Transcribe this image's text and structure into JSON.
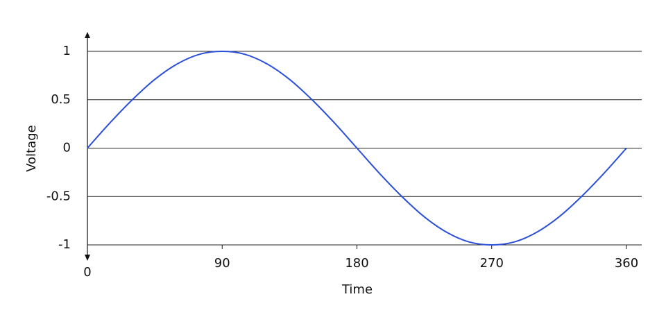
{
  "chart_data": {
    "type": "line",
    "x_label": "Time",
    "y_label": "Voltage",
    "x": [
      0,
      15,
      30,
      45,
      60,
      75,
      90,
      105,
      120,
      135,
      150,
      165,
      180,
      195,
      210,
      225,
      240,
      255,
      270,
      285,
      300,
      315,
      330,
      345,
      360
    ],
    "values": [
      0,
      0.26,
      0.5,
      0.71,
      0.87,
      0.97,
      1,
      0.97,
      0.87,
      0.71,
      0.5,
      0.26,
      0,
      -0.26,
      -0.5,
      -0.71,
      -0.87,
      -0.97,
      -1,
      -0.97,
      -0.87,
      -0.71,
      -0.5,
      -0.26,
      0
    ],
    "color": "#2b4fd8",
    "xlim": [
      0,
      360
    ],
    "xticks": [
      0,
      90,
      180,
      270,
      360
    ],
    "ylim": [
      -1,
      1
    ],
    "yticks": [
      1,
      0.5,
      0,
      -0.5,
      -1
    ],
    "grid": true
  }
}
